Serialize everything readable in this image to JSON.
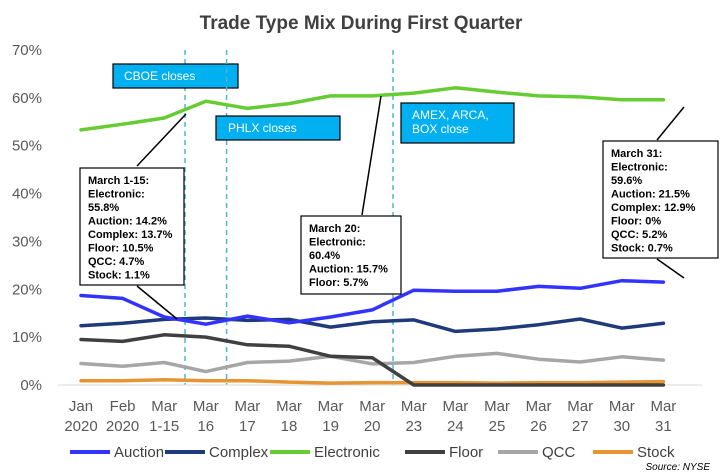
{
  "chart_data": {
    "type": "line",
    "title": "Trade Type Mix During First Quarter",
    "categories": [
      [
        "Jan",
        "2020"
      ],
      [
        "Feb",
        "2020"
      ],
      [
        "Mar",
        "1-15"
      ],
      [
        "Mar",
        "16"
      ],
      [
        "Mar",
        "17"
      ],
      [
        "Mar",
        "18"
      ],
      [
        "Mar",
        "19"
      ],
      [
        "Mar",
        "20"
      ],
      [
        "Mar",
        "23"
      ],
      [
        "Mar",
        "24"
      ],
      [
        "Mar",
        "25"
      ],
      [
        "Mar",
        "26"
      ],
      [
        "Mar",
        "27"
      ],
      [
        "Mar",
        "30"
      ],
      [
        "Mar",
        "31"
      ]
    ],
    "ylim": [
      0,
      70
    ],
    "yticks": [
      "0%",
      "10%",
      "20%",
      "30%",
      "40%",
      "50%",
      "60%",
      "70%"
    ],
    "grid": false,
    "legend_position": "bottom",
    "series": [
      {
        "name": "Auction",
        "color": "#3333ff",
        "values": [
          18.7,
          18.1,
          14.2,
          12.7,
          14.4,
          13.0,
          14.2,
          15.7,
          19.8,
          19.6,
          19.6,
          20.6,
          20.2,
          21.8,
          21.5
        ]
      },
      {
        "name": "Complex",
        "color": "#1f3a7a",
        "values": [
          12.4,
          12.9,
          13.7,
          14.0,
          13.5,
          13.7,
          12.1,
          13.2,
          13.6,
          11.2,
          11.7,
          12.6,
          13.8,
          11.9,
          12.9
        ]
      },
      {
        "name": "Electronic",
        "color": "#66cc33",
        "values": [
          53.3,
          54.5,
          55.8,
          59.3,
          57.8,
          58.8,
          60.4,
          60.4,
          61.0,
          62.1,
          61.2,
          60.4,
          60.2,
          59.6,
          59.6
        ]
      },
      {
        "name": "Floor",
        "color": "#404040",
        "values": [
          9.5,
          9.1,
          10.5,
          10.0,
          8.4,
          8.1,
          6.0,
          5.7,
          0,
          0,
          0,
          0,
          0,
          0,
          0
        ]
      },
      {
        "name": "QCC",
        "color": "#a6a6a6",
        "values": [
          4.5,
          3.9,
          4.7,
          2.8,
          4.7,
          5.0,
          6.0,
          4.4,
          4.7,
          6.0,
          6.6,
          5.4,
          4.8,
          5.9,
          5.2
        ]
      },
      {
        "name": "Stock",
        "color": "#e69532",
        "values": [
          0.9,
          0.9,
          1.1,
          0.9,
          0.9,
          0.6,
          0.4,
          0.5,
          0.5,
          0.5,
          0.4,
          0.5,
          0.5,
          0.6,
          0.7
        ]
      }
    ],
    "events": [
      {
        "label": "CBOE closes",
        "after": 2
      },
      {
        "label": "PHLX closes",
        "after": 3
      },
      {
        "label": "AMEX, ARCA,\nBOX close",
        "after": 7
      }
    ],
    "annotations": [
      {
        "lines": [
          "March 1-15:",
          "Electronic:",
          "55.8%",
          "Auction:  14.2%",
          "Complex: 13.7%",
          "Floor:  10.5%",
          "QCC:  4.7%",
          "Stock:  1.1%"
        ]
      },
      {
        "lines": [
          "March 20:",
          "Electronic:",
          "60.4%",
          "Auction:  15.7%",
          "Floor:  5.7%"
        ]
      },
      {
        "lines": [
          "March 31:",
          "Electronic:",
          "59.6%",
          "Auction:  21.5%",
          "Complex:  12.9%",
          "Floor:  0%",
          "QCC:  5.2%",
          "Stock:  0.7%"
        ]
      }
    ],
    "source": "Source: NYSE"
  }
}
